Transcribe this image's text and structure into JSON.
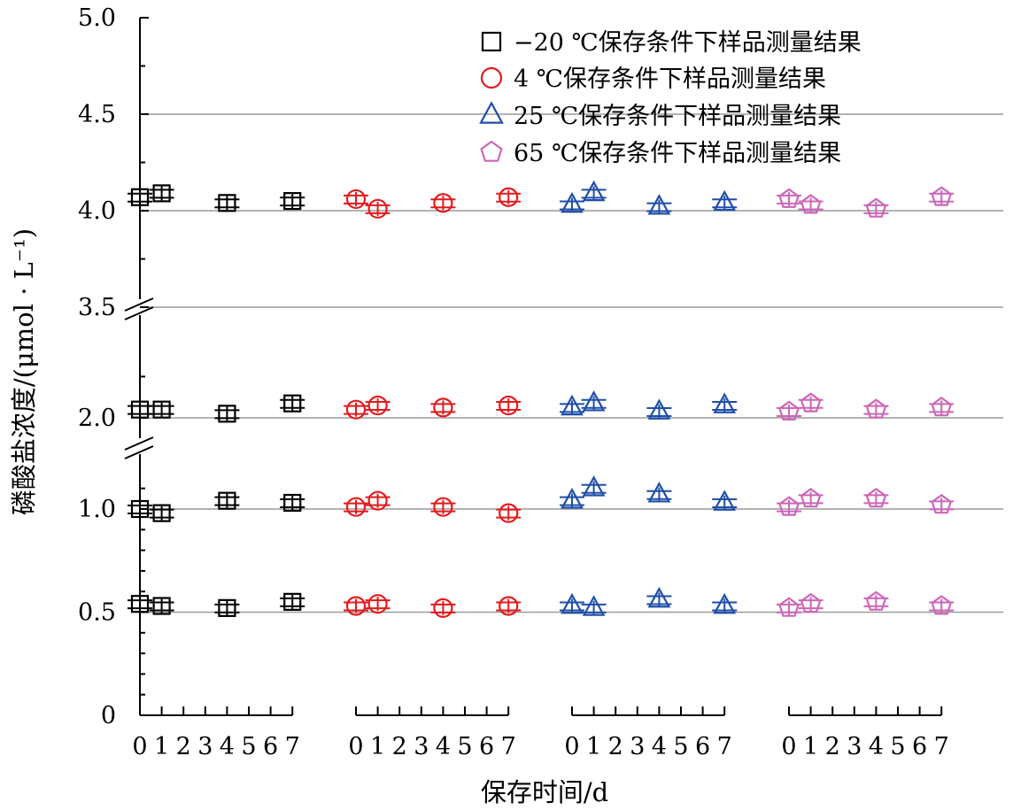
{
  "chart_data": {
    "type": "scatter",
    "xlabel": "保存时间/d",
    "ylabel": "磷酸盐浓度/(μmol · L⁻¹)",
    "x_ticks": [
      "0",
      "1",
      "2",
      "3",
      "4",
      "5",
      "6",
      "7"
    ],
    "y_axis": {
      "ticks": [
        "0",
        "0.5",
        "1.0",
        "2.0",
        "3.5",
        "4.0",
        "4.5",
        "5.0"
      ],
      "broken": true,
      "segments": [
        [
          0,
          1.2
        ],
        [
          1.7,
          2.3
        ],
        [
          3.5,
          5.0
        ]
      ]
    },
    "reference_lines": [
      0.5,
      1.0,
      2.0,
      3.5,
      4.0,
      4.5
    ],
    "legend": {
      "placement": "top-right"
    },
    "series": [
      {
        "name": "−20 ℃保存条件下样品测量结果",
        "marker": "square",
        "color": "#000000",
        "x": [
          0,
          1,
          4,
          7
        ],
        "values": {
          "4.0": [
            4.07,
            4.09,
            4.04,
            4.05
          ],
          "2.0": [
            2.04,
            2.04,
            2.02,
            2.07
          ],
          "1.0": [
            1.0,
            0.98,
            1.04,
            1.03
          ],
          "0.5": [
            0.54,
            0.53,
            0.52,
            0.55
          ]
        }
      },
      {
        "name": "4 ℃保存条件下样品测量结果",
        "marker": "circle",
        "color": "#e31a1c",
        "x": [
          0,
          1,
          4,
          7
        ],
        "values": {
          "4.0": [
            4.06,
            4.01,
            4.04,
            4.07
          ],
          "2.0": [
            2.04,
            2.06,
            2.05,
            2.06
          ],
          "1.0": [
            1.01,
            1.04,
            1.01,
            0.98
          ],
          "0.5": [
            0.53,
            0.54,
            0.52,
            0.53
          ]
        }
      },
      {
        "name": "25 ℃保存条件下样品测量结果",
        "marker": "triangle",
        "color": "#1f4ea8",
        "x": [
          0,
          1,
          4,
          7
        ],
        "values": {
          "4.0": [
            4.03,
            4.09,
            4.02,
            4.04
          ],
          "2.0": [
            2.05,
            2.07,
            2.03,
            2.06
          ],
          "1.0": [
            1.04,
            1.1,
            1.07,
            1.03
          ],
          "0.5": [
            0.53,
            0.52,
            0.56,
            0.53
          ]
        }
      },
      {
        "name": "65 ℃保存条件下样品测量结果",
        "marker": "pentagon",
        "color": "#cc66b8",
        "x": [
          0,
          1,
          4,
          7
        ],
        "values": {
          "4.0": [
            4.06,
            4.03,
            4.01,
            4.07
          ],
          "2.0": [
            2.03,
            2.07,
            2.04,
            2.05
          ],
          "1.0": [
            1.01,
            1.05,
            1.05,
            1.02
          ],
          "0.5": [
            0.52,
            0.54,
            0.55,
            0.53
          ]
        }
      }
    ]
  }
}
